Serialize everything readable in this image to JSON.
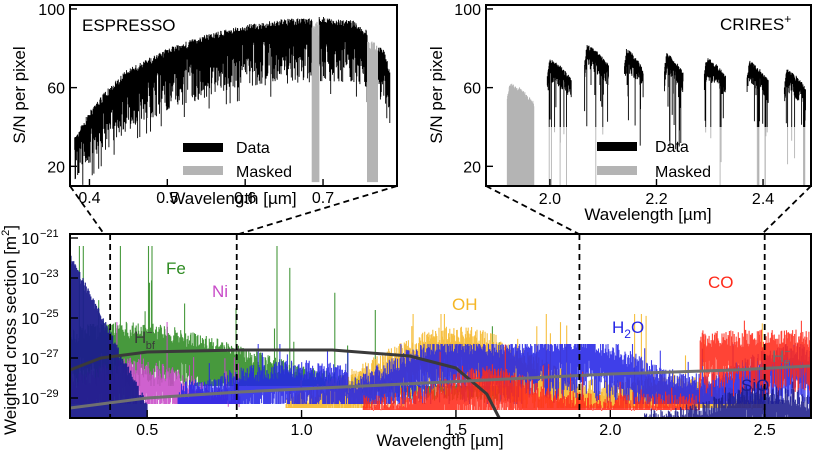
{
  "chart_data": [
    {
      "type": "line",
      "id": "espresso",
      "title": "ESPRESSO",
      "xlabel": "Wavelength [µm]",
      "ylabel": "S/N per pixel",
      "xlim": [
        0.375,
        0.795
      ],
      "ylim": [
        10,
        102
      ],
      "xticks": [
        "0.4",
        "0.5",
        "0.6",
        "0.7"
      ],
      "yticks": [
        "20",
        "60",
        "100"
      ],
      "legend": [
        "Data",
        "Masked"
      ],
      "legend_position": "bottom-right",
      "envelope_x": [
        0.38,
        0.4,
        0.42,
        0.45,
        0.5,
        0.55,
        0.6,
        0.65,
        0.7,
        0.74,
        0.76,
        0.78,
        0.785
      ],
      "envelope_high": [
        35,
        48,
        58,
        70,
        80,
        87,
        92,
        95,
        96,
        94,
        88,
        78,
        70
      ],
      "envelope_low": [
        12,
        20,
        28,
        38,
        48,
        55,
        60,
        62,
        63,
        62,
        58,
        52,
        48
      ],
      "masked_bands": [
        [
          0.686,
          0.695
        ],
        [
          0.757,
          0.77
        ]
      ],
      "colors": {
        "data": "#000000",
        "masked": "#b4b4b4"
      }
    },
    {
      "type": "line",
      "id": "crires",
      "title": "CRIRES",
      "title_sup": "+",
      "xlabel": "Wavelength [µm]",
      "ylabel": "S/N per pixel",
      "xlim": [
        1.88,
        2.49
      ],
      "ylim": [
        10,
        102
      ],
      "xticks": [
        "2.0",
        "2.2",
        "2.4"
      ],
      "yticks": [
        "20",
        "60",
        "100"
      ],
      "legend": [
        "Data",
        "Masked"
      ],
      "legend_position": "bottom-right",
      "orders": [
        {
          "x": [
            1.92,
            1.97
          ],
          "peak": 63,
          "masked": true
        },
        {
          "x": [
            1.995,
            2.04
          ],
          "peak": 75,
          "masked_below": 40
        },
        {
          "x": [
            2.065,
            2.11
          ],
          "peak": 82,
          "masked_below": 40
        },
        {
          "x": [
            2.14,
            2.175
          ],
          "peak": 80
        },
        {
          "x": [
            2.215,
            2.25
          ],
          "peak": 78
        },
        {
          "x": [
            2.29,
            2.33
          ],
          "peak": 76,
          "masked_below": 40
        },
        {
          "x": [
            2.37,
            2.41
          ],
          "peak": 74,
          "masked_below": 40
        },
        {
          "x": [
            2.44,
            2.48
          ],
          "peak": 70,
          "masked_below": 40
        }
      ],
      "colors": {
        "data": "#000000",
        "masked": "#b4b4b4"
      }
    },
    {
      "type": "area",
      "id": "cross-sections",
      "xlabel": "Wavelength [µm]",
      "ylabel": "Weighted cross section [m²]",
      "ylabel_text": "Weighted cross section [m",
      "ylabel_sup": "2",
      "ylabel_end": "]",
      "xlim": [
        0.25,
        2.65
      ],
      "ylim_exp": [
        -30,
        -20.8
      ],
      "yscale": "log",
      "xticks": [
        "0.5",
        "1.0",
        "1.5",
        "2.0",
        "2.5"
      ],
      "ytick_exponents": [
        "−21",
        "−23",
        "−25",
        "−27",
        "−29"
      ],
      "ytick_base": "10",
      "coverage_boundaries": [
        0.38,
        0.79,
        1.9,
        2.5
      ],
      "species": [
        {
          "name": "Fe",
          "color": "#2e8b22",
          "band": [
            0.25,
            1.7
          ],
          "base_exp": -28.4,
          "peak_exp": -21.4
        },
        {
          "name": "Ni",
          "color": "#c84bc8",
          "band": [
            0.25,
            0.8
          ],
          "base_exp": -29.3,
          "peak_exp": -25.2
        },
        {
          "name": "OH",
          "color": "#f5b625",
          "band": [
            0.95,
            2.5
          ],
          "base_exp": -29.5,
          "peak_exp": -24.8
        },
        {
          "name": "H",
          "sub": "2",
          "suffix": "O",
          "color": "#2424e6",
          "band": [
            0.6,
            2.65
          ],
          "base_exp": -29.3,
          "peak_exp": -26.3
        },
        {
          "name": "CO",
          "color": "#ff2a1a",
          "band": [
            1.2,
            2.65
          ],
          "base_exp": -29.6,
          "peak_exp": -24.9
        },
        {
          "name": "SiO",
          "color": "#1c1c8c",
          "band": [
            2.1,
            2.65
          ],
          "base_exp": -30.0,
          "peak_exp": -27.7
        }
      ],
      "continuum": [
        {
          "name": "H",
          "sup": "−",
          "sub": "bf",
          "label_id": "hbf",
          "color": "#3a3a3a",
          "x_exp": [
            [
              0.25,
              -27.6
            ],
            [
              0.35,
              -27.0
            ],
            [
              0.5,
              -26.7
            ],
            [
              0.8,
              -26.6
            ],
            [
              1.1,
              -26.6
            ],
            [
              1.35,
              -26.9
            ],
            [
              1.5,
              -27.5
            ],
            [
              1.6,
              -28.8
            ],
            [
              1.64,
              -30.0
            ]
          ]
        },
        {
          "name": "H",
          "sup": "−",
          "sub": "ff",
          "label_id": "hff",
          "color": "#707070",
          "x_exp": [
            [
              0.25,
              -29.5
            ],
            [
              0.5,
              -29.0
            ],
            [
              0.8,
              -28.7
            ],
            [
              1.2,
              -28.4
            ],
            [
              1.6,
              -28.1
            ],
            [
              2.0,
              -27.8
            ],
            [
              2.4,
              -27.6
            ],
            [
              2.65,
              -27.4
            ]
          ]
        }
      ]
    }
  ]
}
